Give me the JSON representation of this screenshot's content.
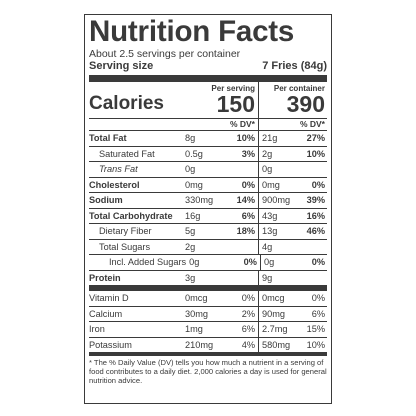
{
  "label": {
    "title": "Nutrition Facts",
    "servings_per_container": "About 2.5 servings per container",
    "serving_size_label": "Serving size",
    "serving_size_value": "7 Fries (84g)",
    "calories_label": "Calories",
    "per_serving_head": "Per serving",
    "per_container_head": "Per container",
    "calories_per_serving": "150",
    "calories_per_container": "390",
    "dv_head_1": "% DV*",
    "dv_head_2": "% DV*",
    "nutrients": [
      {
        "name": "Total Fat",
        "amt1": "8g",
        "pct1": "10%",
        "amt2": "21g",
        "pct2": "27%"
      },
      {
        "name": "Saturated Fat",
        "amt1": "0.5g",
        "pct1": "3%",
        "amt2": "2g",
        "pct2": "10%"
      },
      {
        "name": "Trans Fat",
        "amt1": "0g",
        "pct1": "",
        "amt2": "0g",
        "pct2": ""
      },
      {
        "name": "Cholesterol",
        "amt1": "0mg",
        "pct1": "0%",
        "amt2": "0mg",
        "pct2": "0%"
      },
      {
        "name": "Sodium",
        "amt1": "330mg",
        "pct1": "14%",
        "amt2": "900mg",
        "pct2": "39%"
      },
      {
        "name": "Total Carbohydrate",
        "amt1": "16g",
        "pct1": "6%",
        "amt2": "43g",
        "pct2": "16%"
      },
      {
        "name": "Dietary Fiber",
        "amt1": "5g",
        "pct1": "18%",
        "amt2": "13g",
        "pct2": "46%"
      },
      {
        "name": "Total Sugars",
        "amt1": "2g",
        "pct1": "",
        "amt2": "4g",
        "pct2": ""
      },
      {
        "name": "Incl. Added Sugars",
        "amt1": "0g",
        "pct1": "0%",
        "amt2": "0g",
        "pct2": "0%"
      },
      {
        "name": "Protein",
        "amt1": "3g",
        "pct1": "",
        "amt2": "9g",
        "pct2": ""
      }
    ],
    "vitamins": [
      {
        "name": "Vitamin D",
        "amt1": "0mcg",
        "pct1": "0%",
        "amt2": "0mcg",
        "pct2": "0%"
      },
      {
        "name": "Calcium",
        "amt1": "30mg",
        "pct1": "2%",
        "amt2": "90mg",
        "pct2": "6%"
      },
      {
        "name": "Iron",
        "amt1": "1mg",
        "pct1": "6%",
        "amt2": "2.7mg",
        "pct2": "15%"
      },
      {
        "name": "Potassium",
        "amt1": "210mg",
        "pct1": "4%",
        "amt2": "580mg",
        "pct2": "10%"
      }
    ],
    "footnote": "* The % Daily Value (DV) tells you how much a nutrient in a serving of food contributes to a daily diet. 2,000 calories a day is used for general nutrition advice."
  }
}
